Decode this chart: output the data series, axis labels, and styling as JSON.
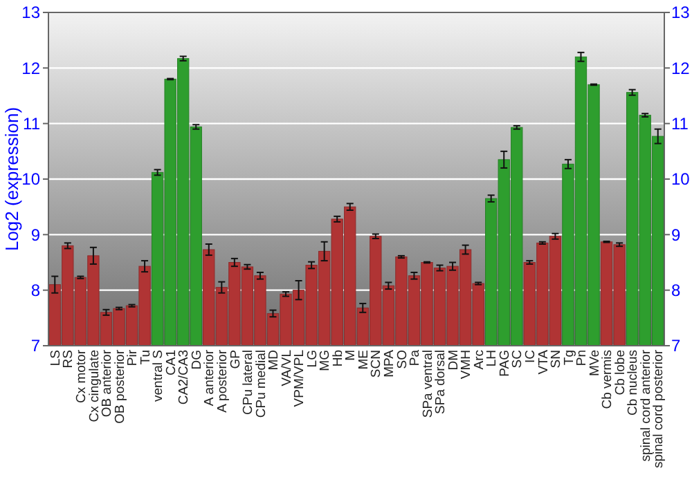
{
  "chart_data": {
    "type": "bar",
    "ylabel": "Log2 (expression)",
    "categories": [
      "LS",
      "RS",
      "Cx motor",
      "Cx cingulate",
      "OB anterior",
      "OB posterior",
      "Pir",
      "Tu",
      "ventral S",
      "CA1",
      "CA2/CA3",
      "DG",
      "A anterior",
      "A posterior",
      "GP",
      "CPu lateral",
      "CPu medial",
      "MD",
      "VA/VL",
      "VPM/VPL",
      "LG",
      "MG",
      "Hb",
      "M",
      "ME",
      "SCN",
      "MPA",
      "SO",
      "Pa",
      "SPa ventral",
      "SPa dorsal",
      "DM",
      "VMH",
      "Arc",
      "LH",
      "PAG",
      "SC",
      "IC",
      "VTA",
      "SN",
      "Tg",
      "Pn",
      "MVe",
      "Cb vermis",
      "Cb lobe",
      "Cb nucleus",
      "spinal cord anterior",
      "spinal cord posterior"
    ],
    "values": [
      8.1,
      8.8,
      8.23,
      8.62,
      7.6,
      7.67,
      7.72,
      8.43,
      10.12,
      11.8,
      12.17,
      10.94,
      8.73,
      8.05,
      8.5,
      8.42,
      8.26,
      7.58,
      7.93,
      8.0,
      8.45,
      8.7,
      9.28,
      9.5,
      7.68,
      8.97,
      8.08,
      8.6,
      8.26,
      8.5,
      8.4,
      8.43,
      8.73,
      8.12,
      9.65,
      10.35,
      10.93,
      8.5,
      8.85,
      8.97,
      10.27,
      12.2,
      11.7,
      8.87,
      8.82,
      11.56,
      11.15,
      10.77
    ],
    "errors": [
      0.15,
      0.05,
      0.02,
      0.15,
      0.05,
      0.02,
      0.02,
      0.1,
      0.05,
      0.01,
      0.04,
      0.04,
      0.1,
      0.1,
      0.07,
      0.04,
      0.06,
      0.06,
      0.04,
      0.17,
      0.06,
      0.17,
      0.05,
      0.06,
      0.08,
      0.04,
      0.06,
      0.02,
      0.06,
      0.01,
      0.05,
      0.07,
      0.08,
      0.02,
      0.06,
      0.15,
      0.03,
      0.03,
      0.02,
      0.05,
      0.08,
      0.08,
      0.01,
      0.01,
      0.03,
      0.05,
      0.03,
      0.13
    ],
    "colors": [
      "#b03434",
      "#b03434",
      "#b03434",
      "#b03434",
      "#b03434",
      "#b03434",
      "#b03434",
      "#b03434",
      "#2e9e2e",
      "#2e9e2e",
      "#2e9e2e",
      "#2e9e2e",
      "#b03434",
      "#b03434",
      "#b03434",
      "#b03434",
      "#b03434",
      "#b03434",
      "#b03434",
      "#b03434",
      "#b03434",
      "#b03434",
      "#b03434",
      "#b03434",
      "#b03434",
      "#b03434",
      "#b03434",
      "#b03434",
      "#b03434",
      "#b03434",
      "#b03434",
      "#b03434",
      "#b03434",
      "#b03434",
      "#2e9e2e",
      "#2e9e2e",
      "#2e9e2e",
      "#b03434",
      "#b03434",
      "#b03434",
      "#2e9e2e",
      "#2e9e2e",
      "#2e9e2e",
      "#b03434",
      "#b03434",
      "#2e9e2e",
      "#2e9e2e",
      "#2e9e2e"
    ],
    "ylim": [
      7,
      13
    ],
    "yticks": [
      7,
      8,
      9,
      10,
      11,
      12,
      13
    ],
    "y2lim": [
      7,
      13
    ],
    "y2ticks": [
      7,
      8,
      9,
      10,
      11,
      12,
      13
    ],
    "grid": "y"
  }
}
